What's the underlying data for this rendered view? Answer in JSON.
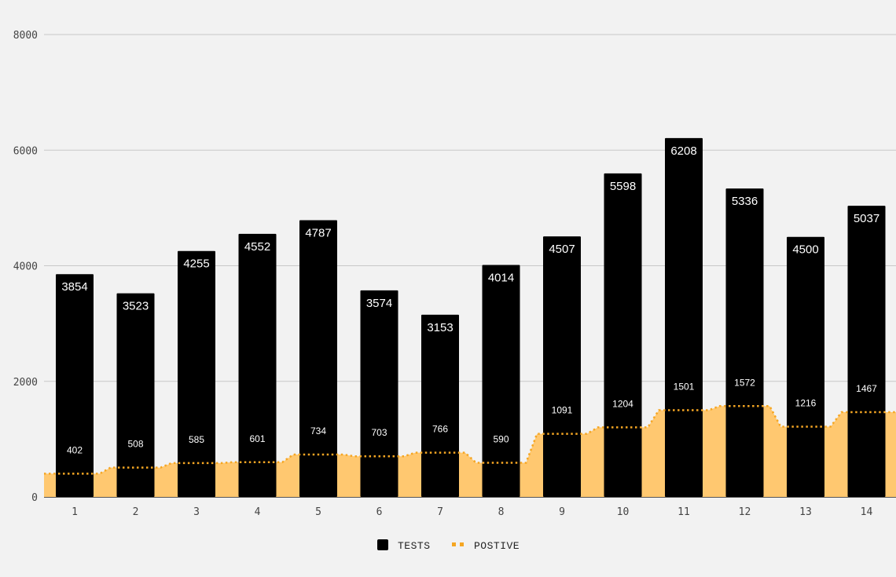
{
  "chart_data": {
    "type": "bar",
    "categories": [
      "1",
      "2",
      "3",
      "4",
      "5",
      "6",
      "7",
      "8",
      "9",
      "10",
      "11",
      "12",
      "13",
      "14"
    ],
    "series": [
      {
        "name": "TESTS",
        "type": "bar",
        "color": "#000000",
        "values": [
          3854,
          3523,
          4255,
          4552,
          4787,
          3574,
          3153,
          4014,
          4507,
          5598,
          6208,
          5336,
          4500,
          5037
        ]
      },
      {
        "name": "POSTIVE",
        "type": "stepped-area",
        "color": "#f5a623",
        "fill": "#ffc870",
        "values": [
          402,
          508,
          585,
          601,
          734,
          703,
          766,
          590,
          1091,
          1204,
          1501,
          1572,
          1216,
          1467
        ]
      }
    ],
    "y_ticks": [
      "0",
      "2000",
      "4000",
      "6000",
      "8000"
    ],
    "ylim": [
      0,
      8000
    ],
    "grid": true,
    "legend": {
      "position": "bottom",
      "entries": [
        "TESTS",
        "POSTIVE"
      ]
    }
  }
}
